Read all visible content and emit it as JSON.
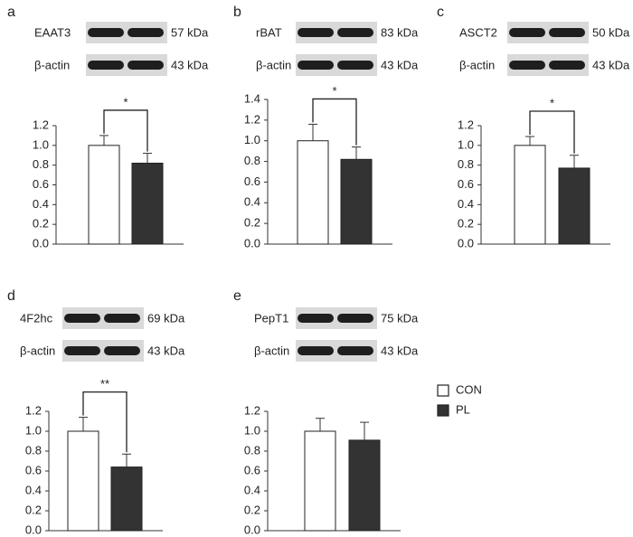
{
  "legend": [
    {
      "name": "CON",
      "color": "#ffffff"
    },
    {
      "name": "PL",
      "color": "#333333"
    }
  ],
  "chart_data": [
    {
      "type": "bar",
      "panel": "a",
      "blot": {
        "protein": "EAAT3",
        "protein_kda": "57 kDa",
        "control": "β-actin",
        "control_kda": "43 kDa"
      },
      "values": [
        1.0,
        0.82
      ],
      "errors": [
        0.1,
        0.1
      ],
      "significance": "*",
      "ylim": [
        0,
        1.2
      ],
      "yticks": [
        {
          "value": 0,
          "label": "0.0"
        },
        {
          "value": 0.2,
          "label": "0.2"
        },
        {
          "value": 0.4,
          "label": "0.4"
        },
        {
          "value": 0.6,
          "label": "0.6"
        },
        {
          "value": 0.8,
          "label": "0.8"
        },
        {
          "value": 1,
          "label": "1.0"
        },
        {
          "value": 1.2,
          "label": "1.2"
        }
      ]
    },
    {
      "type": "bar",
      "panel": "b",
      "blot": {
        "protein": "rBAT",
        "protein_kda": "83 kDa",
        "control": "β-actin",
        "control_kda": "43 kDa"
      },
      "values": [
        1.0,
        0.82
      ],
      "errors": [
        0.16,
        0.12
      ],
      "significance": "*",
      "ylim": [
        0,
        1.4
      ],
      "yticks": [
        {
          "value": 0,
          "label": "0.0"
        },
        {
          "value": 0.2,
          "label": "0.2"
        },
        {
          "value": 0.4,
          "label": "0.4"
        },
        {
          "value": 0.6,
          "label": "0.6"
        },
        {
          "value": 0.8,
          "label": "0.8"
        },
        {
          "value": 1,
          "label": "1.0"
        },
        {
          "value": 1.2,
          "label": "1.2"
        },
        {
          "value": 1.4,
          "label": "1.4"
        }
      ]
    },
    {
      "type": "bar",
      "panel": "c",
      "blot": {
        "protein": "ASCT2",
        "protein_kda": "50 kDa",
        "control": "β-actin",
        "control_kda": "43 kDa"
      },
      "values": [
        1.0,
        0.77
      ],
      "errors": [
        0.09,
        0.13
      ],
      "significance": "*",
      "ylim": [
        0,
        1.2
      ],
      "yticks": [
        {
          "value": 0,
          "label": "0.0"
        },
        {
          "value": 0.2,
          "label": "0.2"
        },
        {
          "value": 0.4,
          "label": "0.4"
        },
        {
          "value": 0.6,
          "label": "0.6"
        },
        {
          "value": 0.8,
          "label": "0.8"
        },
        {
          "value": 1,
          "label": "1.0"
        },
        {
          "value": 1.2,
          "label": "1.2"
        }
      ]
    },
    {
      "type": "bar",
      "panel": "d",
      "blot": {
        "protein": "4F2hc",
        "protein_kda": "69 kDa",
        "control": "β-actin",
        "control_kda": "43 kDa"
      },
      "values": [
        1.0,
        0.64
      ],
      "errors": [
        0.14,
        0.13
      ],
      "significance": "**",
      "ylim": [
        0,
        1.2
      ],
      "yticks": [
        {
          "value": 0,
          "label": "0.0"
        },
        {
          "value": 0.2,
          "label": "0.2"
        },
        {
          "value": 0.4,
          "label": "0.4"
        },
        {
          "value": 0.6,
          "label": "0.6"
        },
        {
          "value": 0.8,
          "label": "0.8"
        },
        {
          "value": 1,
          "label": "1.0"
        },
        {
          "value": 1.2,
          "label": "1.2"
        }
      ]
    },
    {
      "type": "bar",
      "panel": "e",
      "blot": {
        "protein": "PepT1",
        "protein_kda": "75 kDa",
        "control": "β-actin",
        "control_kda": "43 kDa"
      },
      "values": [
        1.0,
        0.91
      ],
      "errors": [
        0.13,
        0.18
      ],
      "ylim": [
        0,
        1.2
      ],
      "yticks": [
        {
          "value": 0,
          "label": "0.0"
        },
        {
          "value": 0.2,
          "label": "0.2"
        },
        {
          "value": 0.4,
          "label": "0.4"
        },
        {
          "value": 0.6,
          "label": "0.6"
        },
        {
          "value": 0.8,
          "label": "0.8"
        },
        {
          "value": 1,
          "label": "1.0"
        },
        {
          "value": 1.2,
          "label": "1.2"
        }
      ]
    }
  ]
}
